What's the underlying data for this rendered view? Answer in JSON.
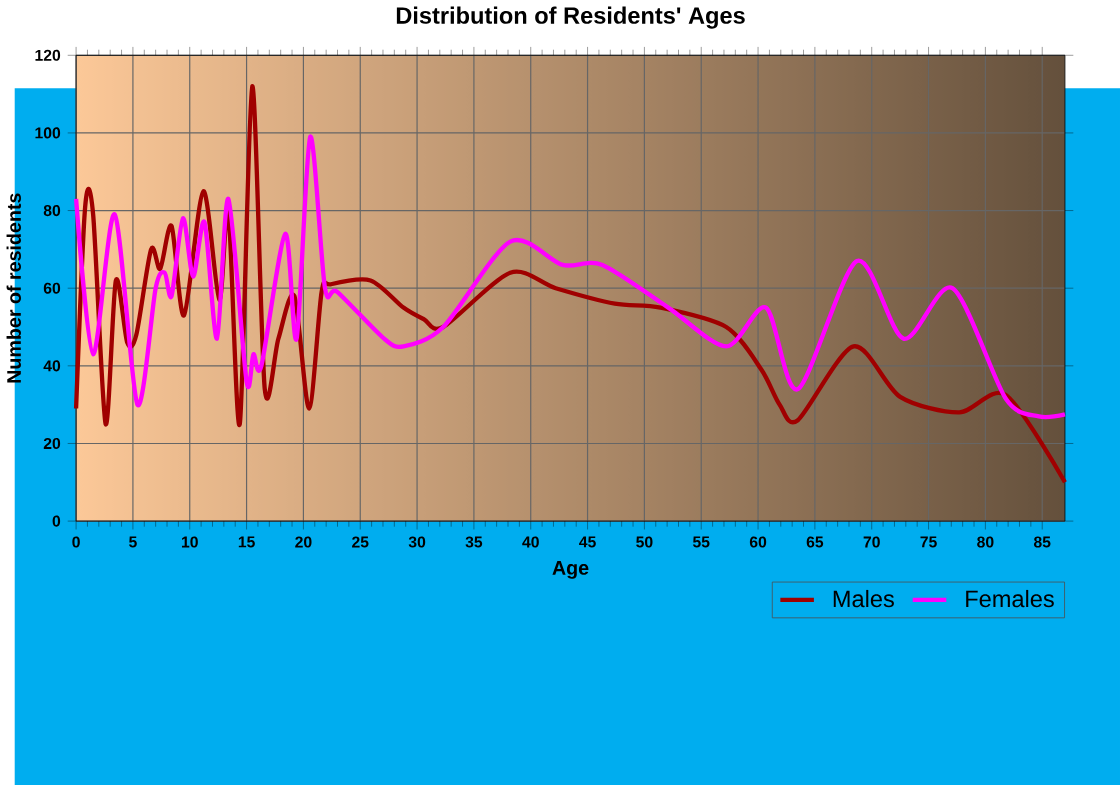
{
  "chart_data": {
    "type": "line",
    "title": "Distribution of Residents' Ages",
    "xlabel": "Age",
    "ylabel": "Number of residents",
    "xlim": [
      0,
      87
    ],
    "ylim": [
      0,
      120
    ],
    "xticks": [
      0,
      5,
      10,
      15,
      20,
      25,
      30,
      35,
      40,
      45,
      50,
      55,
      60,
      65,
      70,
      75,
      80,
      85
    ],
    "yticks": [
      0,
      20,
      40,
      60,
      80,
      100,
      120
    ],
    "grid": true,
    "legend": "bottom",
    "marker": "none",
    "line_style": "solid",
    "series": [
      {
        "name": "Males",
        "color": "#a00000",
        "x": [
          0,
          0.8,
          1.5,
          2.6,
          3.5,
          4.5,
          5.3,
          6.6,
          7.4,
          8.4,
          9.5,
          11.2,
          12.6,
          13.4,
          14.4,
          15.5,
          16.6,
          17.8,
          19.2,
          20.5,
          21.6,
          22.4,
          25.9,
          28.8,
          30.6,
          32.3,
          38.2,
          42.2,
          47.4,
          51.4,
          57.2,
          60.3,
          61.9,
          63.5,
          68.4,
          72.5,
          77.7,
          81.8,
          87
        ],
        "values": [
          29,
          81,
          79,
          25,
          62,
          46,
          48,
          70,
          65,
          76,
          53,
          85,
          57,
          80,
          25,
          112,
          34,
          47,
          58,
          29,
          59,
          61,
          62,
          55,
          52,
          50,
          64,
          60,
          56,
          55,
          50,
          39,
          30,
          26,
          45,
          32,
          28,
          32.5,
          10
        ]
      },
      {
        "name": "Females",
        "color": "#ff00ff",
        "x": [
          0,
          1.5,
          3.4,
          5.4,
          7,
          7.8,
          8.4,
          9.4,
          10.3,
          11.3,
          12.4,
          13.4,
          15,
          15.6,
          16.3,
          18.4,
          19.4,
          20.6,
          21.9,
          23,
          27.1,
          28.8,
          32.3,
          38.2,
          42.8,
          46.3,
          52.1,
          57.2,
          60.7,
          63.5,
          68.7,
          72.8,
          77.1,
          81.8,
          84.7,
          87
        ],
        "values": [
          83,
          43,
          79,
          30,
          60,
          64,
          58,
          78,
          63,
          77,
          47,
          83,
          36,
          43,
          40,
          74,
          47,
          99,
          60,
          59,
          47,
          45,
          50,
          72,
          66,
          66,
          55,
          45,
          55,
          34,
          67,
          47,
          60,
          31.5,
          27,
          27.5
        ]
      }
    ]
  }
}
